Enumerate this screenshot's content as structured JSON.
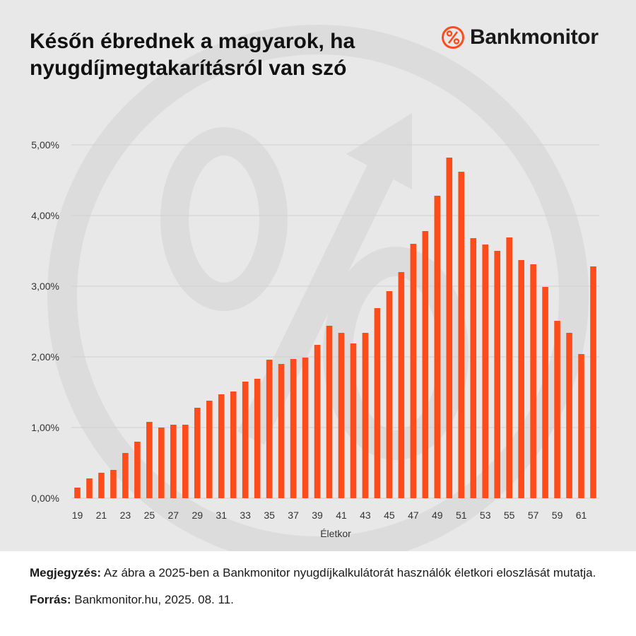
{
  "header": {
    "title": "Későn ébrednek a magyarok, ha nyugdíjmegtakarításról van szó",
    "brand_name": "Bankmonitor",
    "logo_icon": "percent-circle-icon"
  },
  "colors": {
    "accent": "#fc4c1c",
    "panel_background": "#e8e8e8",
    "watermark": "#dcdcdc"
  },
  "chart_data": {
    "type": "bar",
    "title": "",
    "xlabel": "Életkor",
    "ylabel": "",
    "ylim": [
      0,
      5
    ],
    "y_ticks": [
      "0,00%",
      "1,00%",
      "2,00%",
      "3,00%",
      "4,00%",
      "5,00%"
    ],
    "grid": true,
    "legend": "none",
    "categories": [
      19,
      20,
      21,
      22,
      23,
      24,
      25,
      26,
      27,
      28,
      29,
      30,
      31,
      32,
      33,
      34,
      35,
      36,
      37,
      38,
      39,
      40,
      41,
      42,
      43,
      44,
      45,
      46,
      47,
      48,
      49,
      50,
      51,
      52,
      53,
      54,
      55,
      56,
      57,
      58,
      59,
      60,
      61,
      62
    ],
    "x_tick_labels": [
      "19",
      "21",
      "23",
      "25",
      "27",
      "29",
      "31",
      "33",
      "35",
      "37",
      "39",
      "41",
      "43",
      "45",
      "47",
      "49",
      "51",
      "53",
      "55",
      "57",
      "59",
      "61"
    ],
    "values": [
      0.15,
      0.28,
      0.36,
      0.4,
      0.64,
      0.8,
      1.08,
      1.0,
      1.04,
      1.04,
      1.28,
      1.38,
      1.47,
      1.51,
      1.65,
      1.69,
      1.96,
      1.9,
      1.97,
      1.99,
      2.17,
      2.44,
      2.34,
      2.19,
      2.34,
      2.69,
      2.93,
      3.2,
      3.6,
      3.78,
      4.28,
      4.82,
      4.62,
      3.68,
      3.59,
      3.5,
      3.69,
      3.37,
      3.31,
      2.99,
      2.51,
      2.34,
      2.04,
      3.28
    ]
  },
  "footer": {
    "note_label": "Megjegyzés:",
    "note_text": " Az ábra a 2025-ben a Bankmonitor nyugdíjkalkulátorát használók életkori eloszlását mutatja.",
    "source_label": "Forrás:",
    "source_text": " Bankmonitor.hu, 2025. 08. 11."
  }
}
